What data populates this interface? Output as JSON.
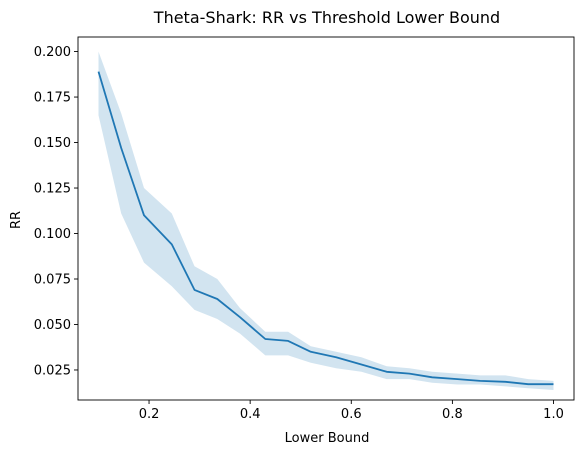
{
  "chart_data": {
    "type": "line",
    "title": "Theta-Shark: RR vs Threshold Lower Bound",
    "xlabel": "Lower Bound",
    "ylabel": "RR",
    "xlim": [
      0.0595,
      1.0405
    ],
    "ylim": [
      0.0085,
      0.208
    ],
    "xticks": [
      0.2,
      0.4,
      0.6,
      0.8,
      1.0
    ],
    "xtick_labels": [
      "0.2",
      "0.4",
      "0.6",
      "0.8",
      "1.0"
    ],
    "yticks": [
      0.025,
      0.05,
      0.075,
      0.1,
      0.125,
      0.15,
      0.175,
      0.2
    ],
    "ytick_labels": [
      "0.025",
      "0.050",
      "0.075",
      "0.100",
      "0.125",
      "0.150",
      "0.175",
      "0.200"
    ],
    "grid": false,
    "line_color": "#1f77b4",
    "band_color": "#1f77b4",
    "x": [
      0.1,
      0.145,
      0.19,
      0.245,
      0.29,
      0.335,
      0.38,
      0.43,
      0.475,
      0.52,
      0.57,
      0.62,
      0.67,
      0.715,
      0.76,
      0.81,
      0.855,
      0.905,
      0.95,
      1.0
    ],
    "y": [
      0.189,
      0.147,
      0.11,
      0.094,
      0.069,
      0.064,
      0.054,
      0.042,
      0.041,
      0.035,
      0.032,
      0.028,
      0.024,
      0.023,
      0.021,
      0.02,
      0.019,
      0.0185,
      0.0172,
      0.0172
    ],
    "upper": [
      0.2,
      0.166,
      0.125,
      0.111,
      0.082,
      0.075,
      0.059,
      0.046,
      0.046,
      0.038,
      0.035,
      0.032,
      0.027,
      0.026,
      0.024,
      0.023,
      0.022,
      0.022,
      0.02,
      0.019
    ],
    "lower": [
      0.165,
      0.111,
      0.084,
      0.071,
      0.058,
      0.053,
      0.045,
      0.033,
      0.033,
      0.029,
      0.026,
      0.024,
      0.02,
      0.02,
      0.018,
      0.017,
      0.017,
      0.016,
      0.015,
      0.014
    ]
  }
}
